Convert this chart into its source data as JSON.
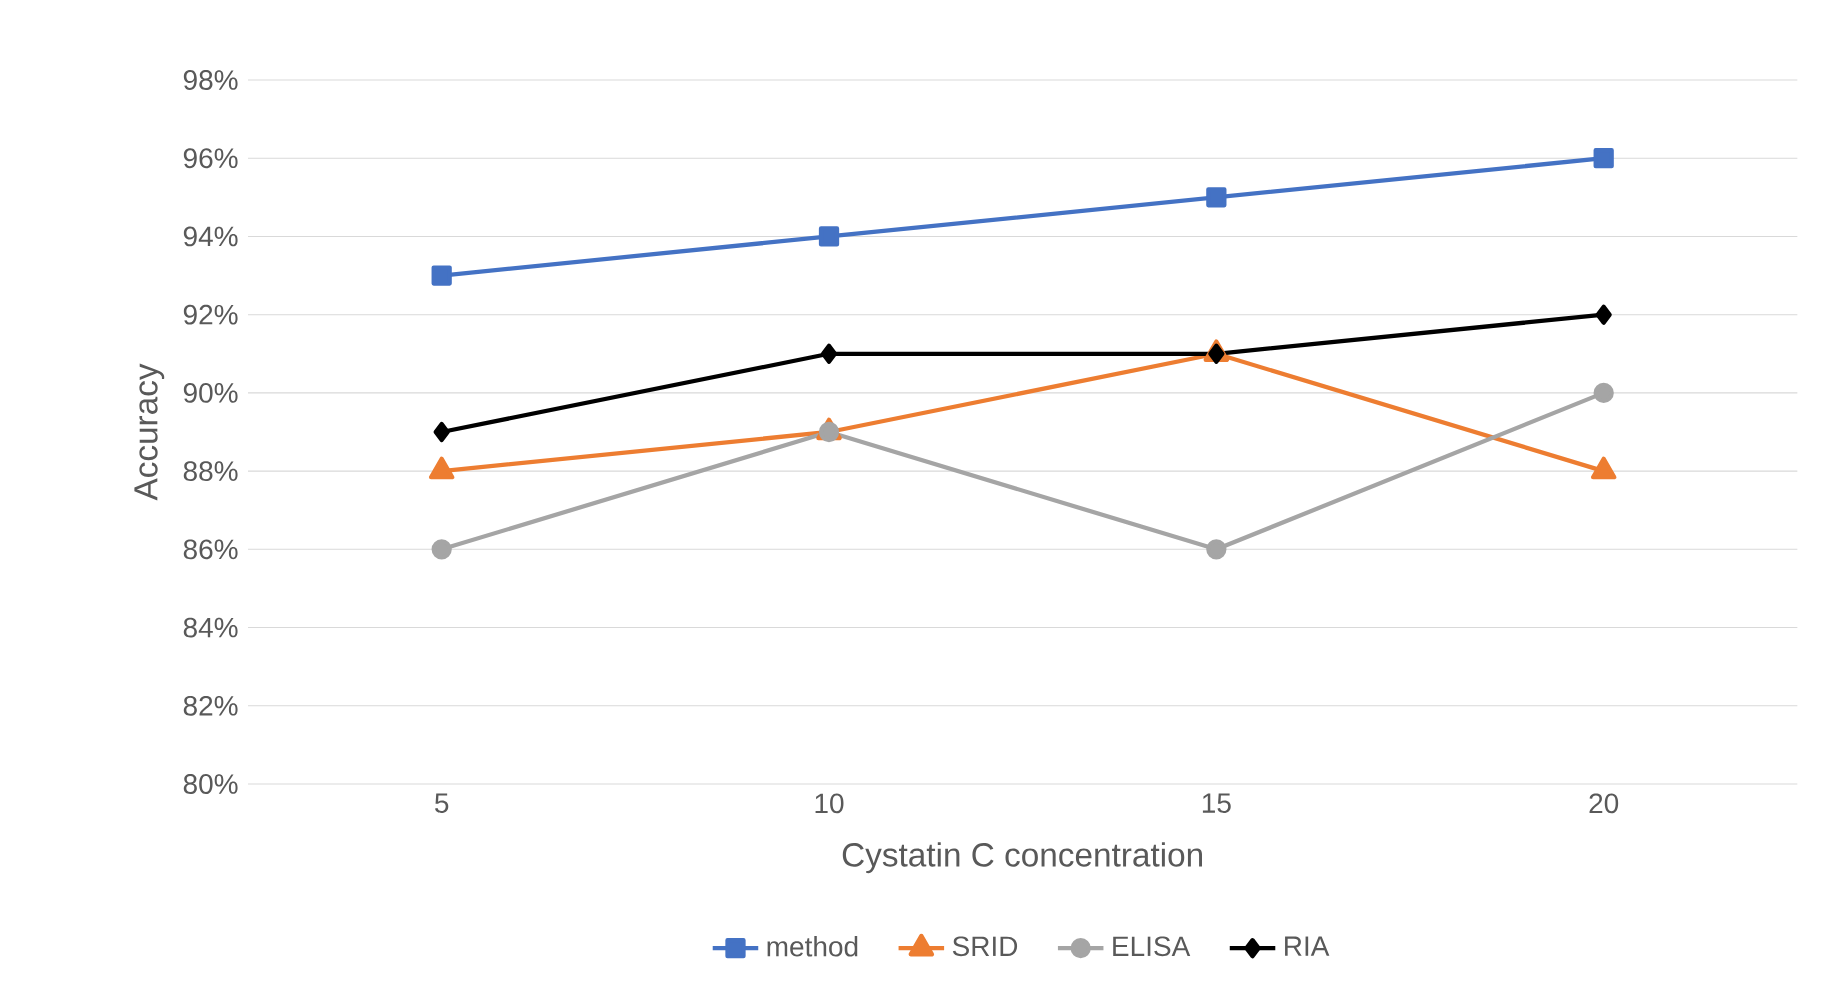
{
  "chart_data": {
    "type": "line",
    "xlabel": "Cystatin C concentration",
    "ylabel": "Accuracy",
    "categories": [
      "5",
      "10",
      "15",
      "20"
    ],
    "series": [
      {
        "name": "method",
        "color": "#4472c4",
        "marker": "square",
        "values": [
          93,
          94,
          95,
          96
        ]
      },
      {
        "name": "SRID",
        "color": "#ed7d31",
        "marker": "triangle",
        "values": [
          88,
          89,
          91,
          88
        ]
      },
      {
        "name": "ELISA",
        "color": "#a5a5a5",
        "marker": "circle",
        "values": [
          86,
          89,
          86,
          90
        ]
      },
      {
        "name": "RIA",
        "color": "#000000",
        "marker": "diamond",
        "values": [
          89,
          91,
          91,
          92
        ]
      }
    ],
    "ylim": [
      80,
      98
    ],
    "yticks": [
      {
        "value": 80,
        "label": "80%"
      },
      {
        "value": 82,
        "label": "82%"
      },
      {
        "value": 84,
        "label": "84%"
      },
      {
        "value": 86,
        "label": "86%"
      },
      {
        "value": 88,
        "label": "88%"
      },
      {
        "value": 90,
        "label": "90%"
      },
      {
        "value": 92,
        "label": "92%"
      },
      {
        "value": 94,
        "label": "94%"
      },
      {
        "value": 96,
        "label": "96%"
      },
      {
        "value": 98,
        "label": "98%"
      }
    ],
    "grid": "y",
    "legend": "bottom",
    "line_style": "solid"
  }
}
